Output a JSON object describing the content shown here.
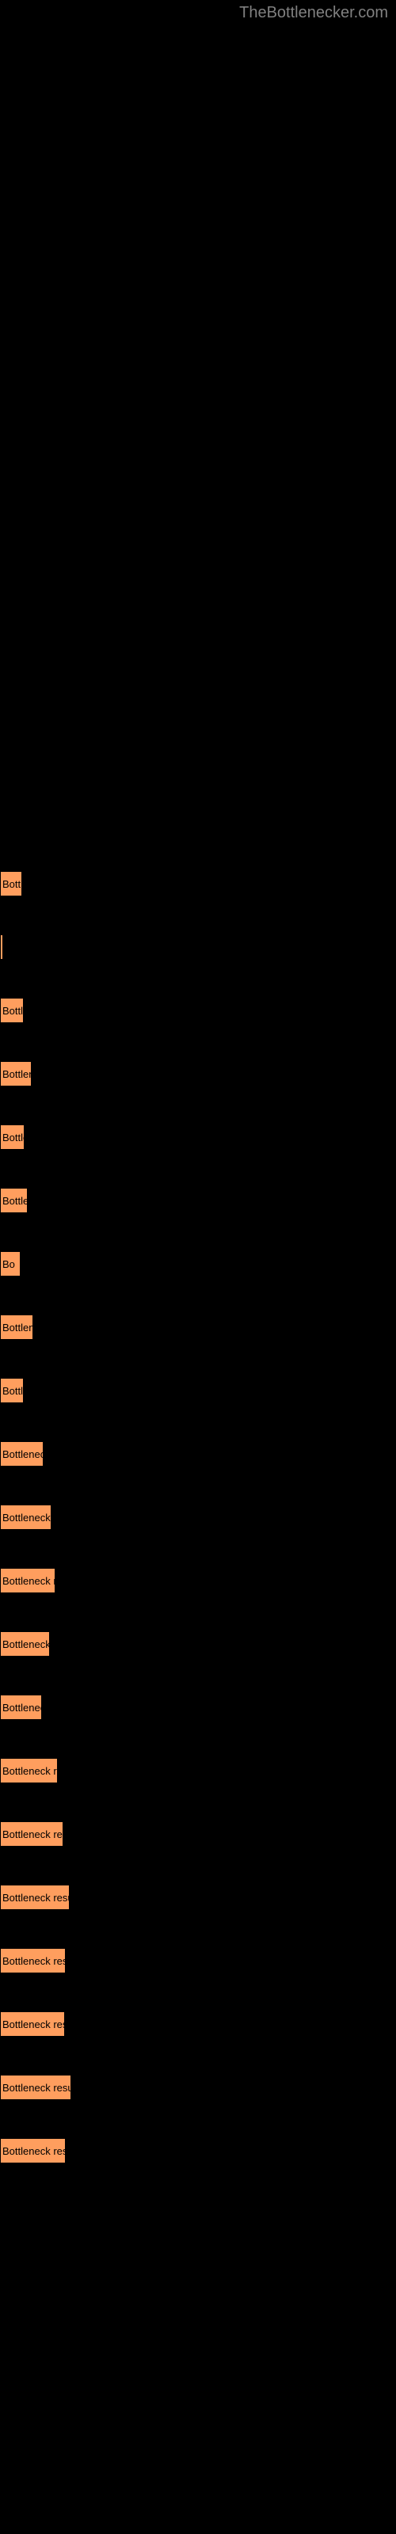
{
  "watermark": "TheBottlenecker.com",
  "chart": {
    "type": "bar",
    "bar_color": "#ff9e5e",
    "background_color": "#000000",
    "label_color": "#000000",
    "label_fontsize": 13,
    "bars": [
      {
        "width": 28,
        "label": "Bott"
      },
      {
        "width": 3,
        "label": ""
      },
      {
        "width": 30,
        "label": "Bottle"
      },
      {
        "width": 40,
        "label": "Bottlenec"
      },
      {
        "width": 31,
        "label": "Bottle"
      },
      {
        "width": 35,
        "label": "Bottlen"
      },
      {
        "width": 26,
        "label": "Bo"
      },
      {
        "width": 42,
        "label": "Bottlenec"
      },
      {
        "width": 30,
        "label": "Bottle"
      },
      {
        "width": 55,
        "label": "Bottleneck re"
      },
      {
        "width": 65,
        "label": "Bottleneck resu"
      },
      {
        "width": 70,
        "label": "Bottleneck result"
      },
      {
        "width": 63,
        "label": "Bottleneck resu"
      },
      {
        "width": 53,
        "label": "Bottleneck r"
      },
      {
        "width": 73,
        "label": "Bottleneck result"
      },
      {
        "width": 80,
        "label": "Bottleneck result"
      },
      {
        "width": 88,
        "label": "Bottleneck result"
      },
      {
        "width": 83,
        "label": "Bottleneck result"
      },
      {
        "width": 82,
        "label": "Bottleneck result"
      },
      {
        "width": 90,
        "label": "Bottleneck result"
      },
      {
        "width": 83,
        "label": "Bottleneck result"
      }
    ]
  }
}
